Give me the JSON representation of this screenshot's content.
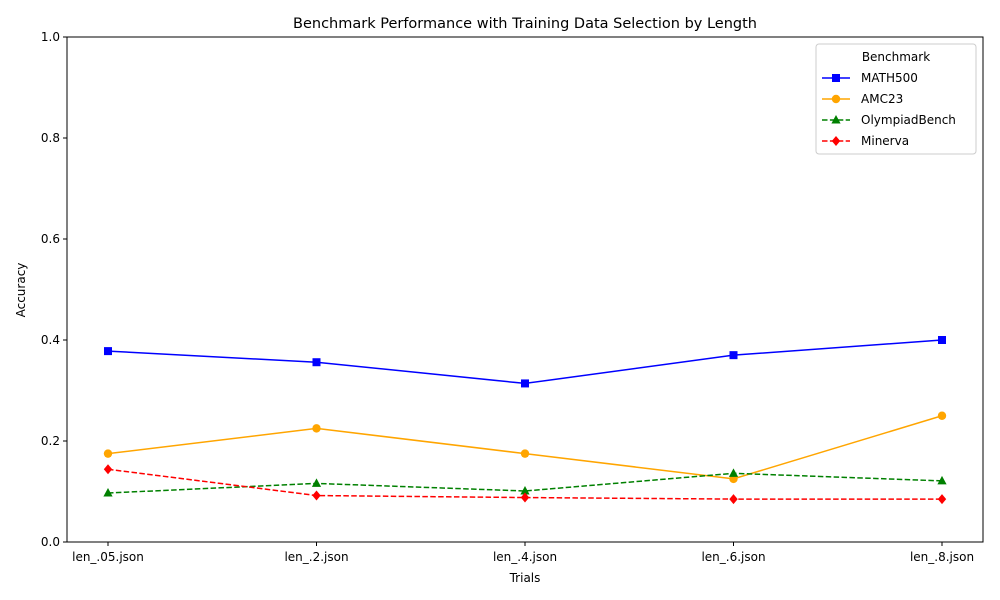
{
  "chart_data": {
    "type": "line",
    "title": "Benchmark Performance with Training Data Selection by Length",
    "xlabel": "Trials",
    "ylabel": "Accuracy",
    "categories": [
      "len_.05.json",
      "len_.2.json",
      "len_.4.json",
      "len_.6.json",
      "len_.8.json"
    ],
    "ylim": [
      0,
      1
    ],
    "yticks": [
      "0.0",
      "0.2",
      "0.4",
      "0.6",
      "0.8",
      "1.0"
    ],
    "grid": false,
    "legend": {
      "title": "Benchmark",
      "placement": "top-right"
    },
    "series": [
      {
        "name": "MATH500",
        "values": [
          0.378,
          0.356,
          0.314,
          0.37,
          0.4
        ],
        "color": "#0000ff",
        "marker": "square",
        "dash": "solid"
      },
      {
        "name": "AMC23",
        "values": [
          0.175,
          0.225,
          0.175,
          0.125,
          0.25
        ],
        "color": "#ffa500",
        "marker": "circle",
        "dash": "solid"
      },
      {
        "name": "OlympiadBench",
        "values": [
          0.097,
          0.116,
          0.101,
          0.136,
          0.121
        ],
        "color": "#008000",
        "marker": "triangle",
        "dash": "dashed"
      },
      {
        "name": "Minerva",
        "values": [
          0.144,
          0.092,
          0.088,
          0.085,
          0.085
        ],
        "color": "#ff0000",
        "marker": "diamond",
        "dash": "dashed"
      }
    ]
  }
}
